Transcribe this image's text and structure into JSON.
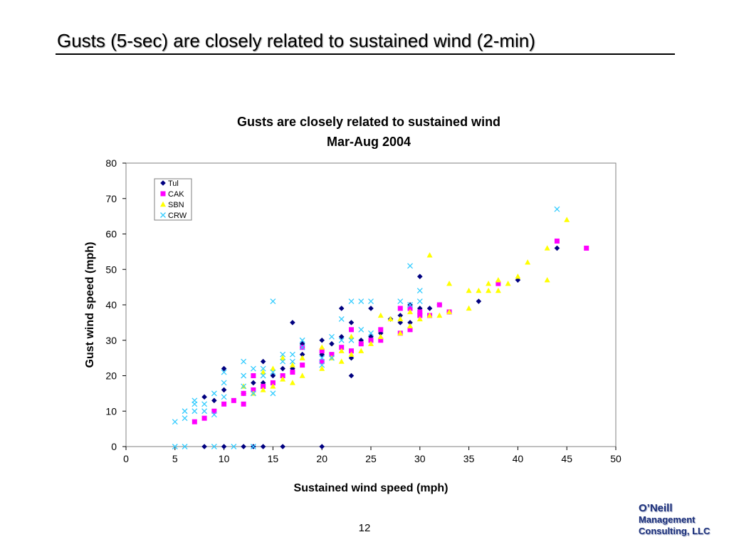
{
  "slide": {
    "title": "Gusts (5-sec) are closely related to sustained wind (2-min)",
    "page_number": "12",
    "logo": [
      "O’Neill",
      "Management",
      "Consulting, LLC"
    ]
  },
  "colors": {
    "Tul": "#000080",
    "CAK": "#ff00ff",
    "SBN": "#ffff00",
    "CRW": "#33ccff",
    "extra_marker": "#66ff66"
  },
  "chart_data": {
    "type": "scatter",
    "title": "Gusts are closely related to sustained wind",
    "subtitle": "Mar-Aug 2004",
    "xlabel": "Sustained wind speed (mph)",
    "ylabel": "Gust wind speed (mph)",
    "xlim": [
      0,
      50
    ],
    "ylim": [
      0,
      80
    ],
    "xticks": [
      "0",
      "5",
      "10",
      "15",
      "20",
      "25",
      "30",
      "35",
      "40",
      "45",
      "50"
    ],
    "yticks": [
      "0",
      "10",
      "20",
      "30",
      "40",
      "50",
      "60",
      "70",
      "80"
    ],
    "grid": false,
    "legend_position": "top-left",
    "series": [
      {
        "name": "Tul",
        "marker": "diamond",
        "points": [
          [
            8,
            14
          ],
          [
            8,
            0
          ],
          [
            9,
            13
          ],
          [
            10,
            0
          ],
          [
            10,
            16
          ],
          [
            10,
            22
          ],
          [
            12,
            0
          ],
          [
            12,
            15
          ],
          [
            13,
            0
          ],
          [
            13,
            18
          ],
          [
            14,
            0
          ],
          [
            14,
            24
          ],
          [
            14,
            18
          ],
          [
            15,
            20
          ],
          [
            16,
            0
          ],
          [
            16,
            22
          ],
          [
            17,
            35
          ],
          [
            17,
            22
          ],
          [
            18,
            29
          ],
          [
            18,
            26
          ],
          [
            20,
            0
          ],
          [
            20,
            30
          ],
          [
            20,
            26
          ],
          [
            21,
            29
          ],
          [
            22,
            39
          ],
          [
            22,
            31
          ],
          [
            23,
            35
          ],
          [
            23,
            25
          ],
          [
            23,
            20
          ],
          [
            24,
            30
          ],
          [
            25,
            39
          ],
          [
            25,
            31
          ],
          [
            26,
            32
          ],
          [
            27,
            36
          ],
          [
            28,
            35
          ],
          [
            28,
            37
          ],
          [
            29,
            40
          ],
          [
            29,
            35
          ],
          [
            30,
            48
          ],
          [
            30,
            39
          ],
          [
            31,
            39
          ],
          [
            32,
            40
          ],
          [
            33,
            38
          ],
          [
            36,
            41
          ],
          [
            40,
            47
          ],
          [
            44,
            56
          ]
        ]
      },
      {
        "name": "CAK",
        "marker": "square",
        "points": [
          [
            7,
            7
          ],
          [
            8,
            8
          ],
          [
            9,
            10
          ],
          [
            10,
            12
          ],
          [
            11,
            13
          ],
          [
            12,
            12
          ],
          [
            12,
            15
          ],
          [
            13,
            16
          ],
          [
            13,
            20
          ],
          [
            14,
            17
          ],
          [
            15,
            18
          ],
          [
            16,
            20
          ],
          [
            17,
            21
          ],
          [
            18,
            23
          ],
          [
            18,
            28
          ],
          [
            20,
            24
          ],
          [
            20,
            27
          ],
          [
            21,
            26
          ],
          [
            22,
            28
          ],
          [
            23,
            33
          ],
          [
            23,
            27
          ],
          [
            24,
            29
          ],
          [
            25,
            30
          ],
          [
            26,
            30
          ],
          [
            26,
            33
          ],
          [
            28,
            32
          ],
          [
            28,
            39
          ],
          [
            29,
            33
          ],
          [
            29,
            39
          ],
          [
            30,
            37
          ],
          [
            30,
            38
          ],
          [
            31,
            37
          ],
          [
            32,
            40
          ],
          [
            33,
            38
          ],
          [
            38,
            46
          ],
          [
            44,
            58
          ],
          [
            47,
            56
          ]
        ]
      },
      {
        "name": "SBN",
        "marker": "triangle",
        "points": [
          [
            12,
            17
          ],
          [
            13,
            15
          ],
          [
            14,
            16
          ],
          [
            14,
            21
          ],
          [
            15,
            17
          ],
          [
            15,
            22
          ],
          [
            16,
            19
          ],
          [
            16,
            25
          ],
          [
            17,
            18
          ],
          [
            17,
            23
          ],
          [
            18,
            20
          ],
          [
            18,
            25
          ],
          [
            20,
            22
          ],
          [
            20,
            28
          ],
          [
            21,
            25
          ],
          [
            22,
            24
          ],
          [
            22,
            27
          ],
          [
            23,
            26
          ],
          [
            23,
            31
          ],
          [
            24,
            27
          ],
          [
            25,
            29
          ],
          [
            26,
            31
          ],
          [
            26,
            37
          ],
          [
            27,
            36
          ],
          [
            28,
            32
          ],
          [
            28,
            36
          ],
          [
            29,
            34
          ],
          [
            29,
            38
          ],
          [
            30,
            36
          ],
          [
            31,
            37
          ],
          [
            31,
            54
          ],
          [
            32,
            37
          ],
          [
            33,
            38
          ],
          [
            33,
            46
          ],
          [
            35,
            39
          ],
          [
            35,
            44
          ],
          [
            36,
            44
          ],
          [
            37,
            44
          ],
          [
            37,
            46
          ],
          [
            38,
            44
          ],
          [
            38,
            47
          ],
          [
            39,
            46
          ],
          [
            40,
            48
          ],
          [
            41,
            52
          ],
          [
            43,
            47
          ],
          [
            43,
            56
          ],
          [
            45,
            64
          ]
        ]
      },
      {
        "name": "CRW",
        "marker": "x",
        "points": [
          [
            5,
            7
          ],
          [
            5,
            0
          ],
          [
            6,
            0
          ],
          [
            6,
            8
          ],
          [
            6,
            10
          ],
          [
            7,
            10
          ],
          [
            7,
            12
          ],
          [
            7,
            13
          ],
          [
            8,
            10
          ],
          [
            8,
            12
          ],
          [
            9,
            9
          ],
          [
            9,
            0
          ],
          [
            9,
            15
          ],
          [
            10,
            18
          ],
          [
            10,
            21
          ],
          [
            10,
            14
          ],
          [
            11,
            0
          ],
          [
            12,
            20
          ],
          [
            12,
            24
          ],
          [
            12,
            17
          ],
          [
            13,
            15
          ],
          [
            13,
            22
          ],
          [
            13,
            0
          ],
          [
            14,
            20
          ],
          [
            14,
            22
          ],
          [
            15,
            15
          ],
          [
            15,
            41
          ],
          [
            15,
            21
          ],
          [
            16,
            26
          ],
          [
            16,
            24
          ],
          [
            17,
            26
          ],
          [
            17,
            24
          ],
          [
            18,
            30
          ],
          [
            18,
            28
          ],
          [
            20,
            23
          ],
          [
            20,
            25
          ],
          [
            21,
            31
          ],
          [
            21,
            25
          ],
          [
            22,
            36
          ],
          [
            22,
            30
          ],
          [
            23,
            41
          ],
          [
            23,
            30
          ],
          [
            24,
            41
          ],
          [
            24,
            33
          ],
          [
            25,
            41
          ],
          [
            25,
            32
          ],
          [
            28,
            41
          ],
          [
            29,
            51
          ],
          [
            29,
            40
          ],
          [
            30,
            44
          ],
          [
            30,
            41
          ],
          [
            44,
            67
          ]
        ]
      }
    ]
  }
}
